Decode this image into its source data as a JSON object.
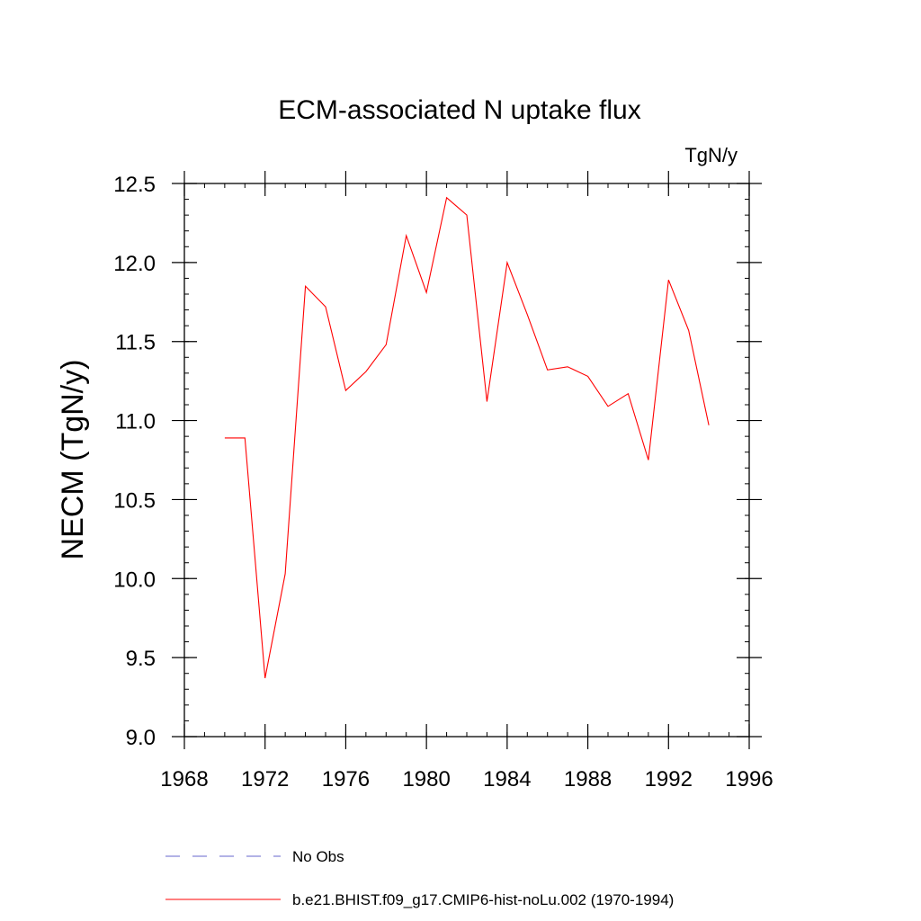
{
  "chart_data": {
    "type": "line",
    "title": "ECM-associated N uptake flux",
    "units": "TgN/y",
    "xlabel": "",
    "ylabel": "NECM  (TgN/y)",
    "xlim": [
      1968,
      1996
    ],
    "ylim": [
      9.0,
      12.5
    ],
    "xticks": [
      1968,
      1972,
      1976,
      1980,
      1984,
      1988,
      1992,
      1996
    ],
    "yticks": [
      9.0,
      9.5,
      10.0,
      10.5,
      11.0,
      11.5,
      12.0,
      12.5
    ],
    "ytick_labels": [
      "9.0",
      "9.5",
      "10.0",
      "10.5",
      "11.0",
      "11.5",
      "12.0",
      "12.5"
    ],
    "grid": false,
    "legend_position": "bottom",
    "series": [
      {
        "name": "b.e21.BHIST.f09_g17.CMIP6-hist-noLu.002 (1970-1994)",
        "color": "#ff0000",
        "style": "solid",
        "x": [
          1970,
          1971,
          1972,
          1973,
          1974,
          1975,
          1976,
          1977,
          1978,
          1979,
          1980,
          1981,
          1982,
          1983,
          1984,
          1985,
          1986,
          1987,
          1988,
          1989,
          1990,
          1991,
          1992,
          1993,
          1994
        ],
        "y": [
          10.89,
          10.89,
          9.37,
          10.03,
          11.85,
          11.72,
          11.19,
          11.31,
          11.48,
          12.17,
          11.81,
          12.41,
          12.3,
          11.12,
          12.0,
          11.67,
          11.32,
          11.34,
          11.28,
          11.09,
          11.17,
          10.75,
          11.89,
          11.57,
          10.97
        ]
      }
    ],
    "legend": [
      {
        "label": "No Obs",
        "color": "#6666cc",
        "style": "dashed"
      },
      {
        "label": "b.e21.BHIST.f09_g17.CMIP6-hist-noLu.002 (1970-1994)",
        "color": "#ff0000",
        "style": "solid"
      }
    ]
  }
}
